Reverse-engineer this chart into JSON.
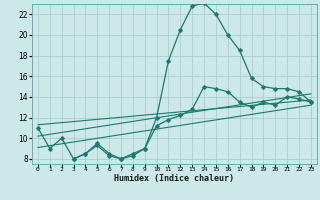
{
  "xlabel": "Humidex (Indice chaleur)",
  "ylabel": "",
  "bg_color": "#cce8e8",
  "grid_color": "#aacece",
  "line_color": "#1a7a6e",
  "xlim": [
    -0.5,
    23.5
  ],
  "ylim": [
    7.5,
    23.0
  ],
  "xticks": [
    0,
    1,
    2,
    3,
    4,
    5,
    6,
    7,
    8,
    9,
    10,
    11,
    12,
    13,
    14,
    15,
    16,
    17,
    18,
    19,
    20,
    21,
    22,
    23
  ],
  "yticks": [
    8,
    10,
    12,
    14,
    16,
    18,
    20,
    22
  ],
  "curve1_x": [
    0,
    1,
    2,
    3,
    4,
    5,
    6,
    7,
    8,
    9,
    10,
    11,
    12,
    13,
    14,
    15,
    16,
    17,
    18,
    19,
    20,
    21,
    22,
    23
  ],
  "curve1_y": [
    11.0,
    9.0,
    10.0,
    8.0,
    8.5,
    9.5,
    8.5,
    8.0,
    8.5,
    9.0,
    12.0,
    17.5,
    20.5,
    22.8,
    23.1,
    22.0,
    20.0,
    18.5,
    15.8,
    15.0,
    14.8,
    14.8,
    14.5,
    13.5
  ],
  "curve2_x": [
    3,
    4,
    5,
    6,
    7,
    8,
    9,
    10,
    11,
    12,
    13,
    14,
    15,
    16,
    17,
    18,
    19,
    20,
    21,
    22,
    23
  ],
  "curve2_y": [
    8.0,
    8.5,
    9.3,
    8.3,
    8.0,
    8.3,
    9.0,
    11.2,
    11.8,
    12.2,
    12.8,
    15.0,
    14.8,
    14.5,
    13.5,
    13.0,
    13.5,
    13.2,
    14.0,
    13.8,
    13.5
  ],
  "line2_x": [
    0,
    23
  ],
  "line2_y": [
    10.2,
    14.3
  ],
  "line3_x": [
    0,
    23
  ],
  "line3_y": [
    11.3,
    13.7
  ],
  "line4_x": [
    0,
    23
  ],
  "line4_y": [
    9.1,
    13.2
  ]
}
